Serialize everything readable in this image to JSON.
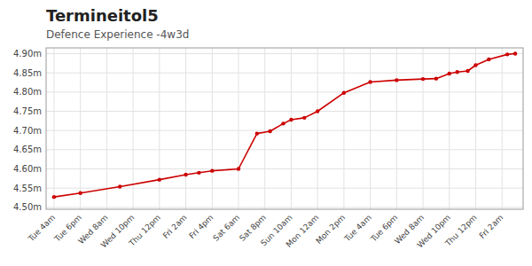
{
  "chart_data": {
    "type": "line",
    "title": "Termineitol5",
    "subtitle": "Defence Experience -4w3d",
    "x": [
      0,
      1,
      2.5,
      4,
      5,
      5.5,
      6,
      7,
      7.7,
      8.2,
      8.7,
      9.0,
      9.5,
      10,
      11,
      12,
      13,
      14,
      14.5,
      15,
      15.3,
      15.7,
      16,
      16.5,
      17.2,
      17.5
    ],
    "values": [
      4.527,
      4.537,
      4.554,
      4.572,
      4.585,
      4.59,
      4.595,
      4.6,
      4.692,
      4.698,
      4.718,
      4.728,
      4.733,
      4.75,
      4.798,
      4.826,
      4.831,
      4.834,
      4.835,
      4.848,
      4.852,
      4.855,
      4.87,
      4.885,
      4.898,
      4.9
    ],
    "color": "#cc0000",
    "marker": "circle",
    "xlim": [
      -0.3,
      17.8
    ],
    "xticks": [
      {
        "value": 0,
        "label": "Tue 4am"
      },
      {
        "value": 1,
        "label": "Tue 6pm"
      },
      {
        "value": 2,
        "label": "Wed 8am"
      },
      {
        "value": 3,
        "label": "Wed 10pm"
      },
      {
        "value": 4,
        "label": "Thu 12pm"
      },
      {
        "value": 5,
        "label": "Fri 2am"
      },
      {
        "value": 6,
        "label": "Fri 4pm"
      },
      {
        "value": 7,
        "label": "Sat 6am"
      },
      {
        "value": 8,
        "label": "Sat 8pm"
      },
      {
        "value": 9,
        "label": "Sun 10am"
      },
      {
        "value": 10,
        "label": "Mon 12am"
      },
      {
        "value": 11,
        "label": "Mon 2pm"
      },
      {
        "value": 12,
        "label": "Tue 4am"
      },
      {
        "value": 13,
        "label": "Tue 6pm"
      },
      {
        "value": 14,
        "label": "Wed 8am"
      },
      {
        "value": 15,
        "label": "Wed 10pm"
      },
      {
        "value": 16,
        "label": "Thu 12pm"
      },
      {
        "value": 17,
        "label": "Fri 2am"
      }
    ],
    "ylim": [
      4.495,
      4.915
    ],
    "yticks": [
      {
        "value": 4.5,
        "label": "4.50m"
      },
      {
        "value": 4.55,
        "label": "4.55m"
      },
      {
        "value": 4.6,
        "label": "4.60m"
      },
      {
        "value": 4.65,
        "label": "4.65m"
      },
      {
        "value": 4.7,
        "label": "4.70m"
      },
      {
        "value": 4.75,
        "label": "4.75m"
      },
      {
        "value": 4.8,
        "label": "4.80m"
      },
      {
        "value": 4.85,
        "label": "4.85m"
      },
      {
        "value": 4.9,
        "label": "4.90m"
      }
    ],
    "grid": true
  }
}
